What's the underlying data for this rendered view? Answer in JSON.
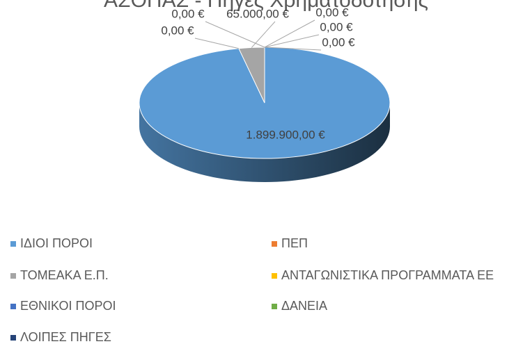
{
  "chart_data": {
    "type": "pie",
    "title": "ΑΣΟΠΑΣ - Πηγές Χρηματοδότησης",
    "categories": [
      "ΙΔΙΟΙ ΠΟΡΟΙ",
      "ΠΕΠ",
      "ΤΟΜΕΑΚΑ Ε.Π.",
      "ΑΝΤΑΓΩΝΙΣΤΙΚΑ ΠΡΟΓΡΑΜΜΑΤΑ ΕΕ",
      "ΕΘΝΙΚΟΙ ΠΟΡΟΙ",
      "ΔΑΝΕΙΑ",
      "ΛΟΙΠΕΣ ΠΗΓΕΣ"
    ],
    "values": [
      1899900,
      0,
      65000,
      0,
      0,
      0,
      0
    ],
    "value_labels": [
      "1.899.900,00 €",
      "0,00 €",
      "65.000,00 €",
      "0,00 €",
      "0,00 €",
      "0,00 €",
      "0,00 €"
    ],
    "colors": [
      "#5b9bd5",
      "#ed7d31",
      "#a5a5a5",
      "#ffc000",
      "#4472c4",
      "#70ad47",
      "#264478"
    ],
    "legend": "bottom"
  }
}
